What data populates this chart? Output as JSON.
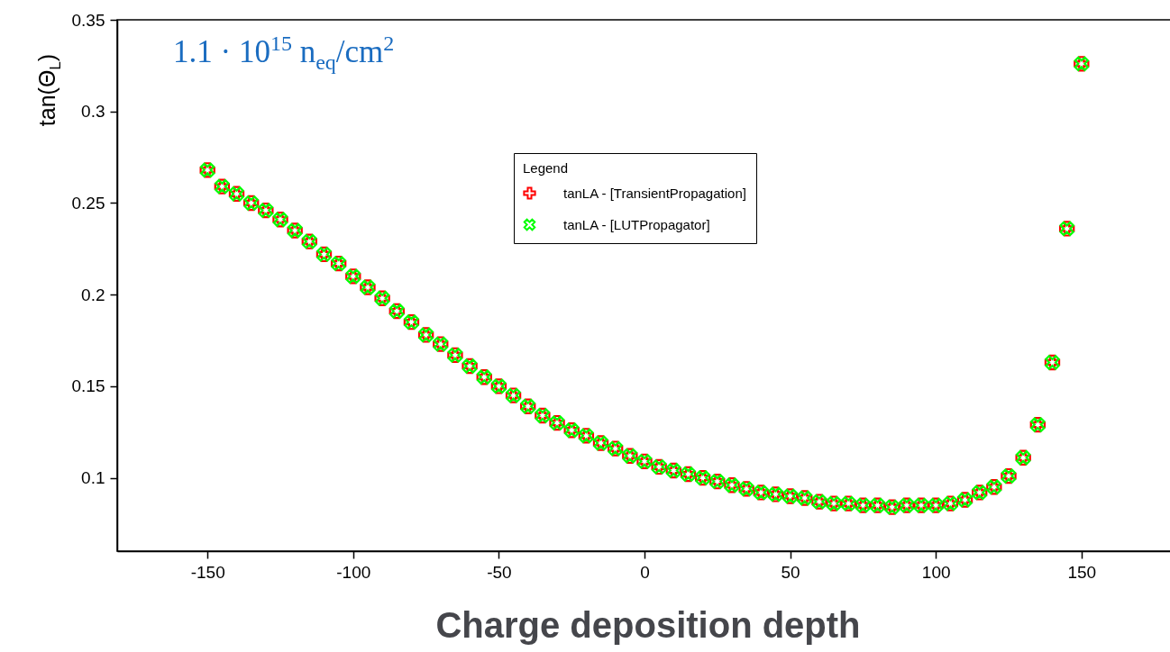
{
  "chart_data": {
    "type": "scatter",
    "xlabel": "Charge deposition depth",
    "ylabel": "tan(Θ$_{L}$)",
    "legend_title": "Legend",
    "legend": "top",
    "marker": "cross",
    "grid": false,
    "annotations": [
      "1.1 · 10$^{15}$ n$_{eq}$/cm$^{2}$"
    ],
    "xlim": [
      -181,
      181
    ],
    "xticks": [
      -150,
      -100,
      -50,
      0,
      50,
      100,
      150
    ],
    "ylim": [
      0.06,
      0.35
    ],
    "yticks": [
      0.1,
      0.15,
      0.2,
      0.25,
      0.3,
      0.35
    ],
    "x": [
      -150,
      -145,
      -140,
      -135,
      -130,
      -125,
      -120,
      -115,
      -110,
      -105,
      -100,
      -95,
      -90,
      -85,
      -80,
      -75,
      -70,
      -65,
      -60,
      -55,
      -50,
      -45,
      -40,
      -35,
      -30,
      -25,
      -20,
      -15,
      -10,
      -5,
      0,
      5,
      10,
      15,
      20,
      25,
      30,
      35,
      40,
      45,
      50,
      55,
      60,
      65,
      70,
      75,
      80,
      85,
      90,
      95,
      100,
      105,
      110,
      115,
      120,
      125,
      130,
      135,
      140,
      145,
      150
    ],
    "series": [
      {
        "name": "tanLA - [TransientPropagation]",
        "color": "#ff0000",
        "values": [
          0.268,
          0.259,
          0.255,
          0.25,
          0.246,
          0.241,
          0.235,
          0.229,
          0.222,
          0.217,
          0.21,
          0.204,
          0.198,
          0.191,
          0.185,
          0.178,
          0.173,
          0.167,
          0.161,
          0.155,
          0.15,
          0.145,
          0.139,
          0.134,
          0.13,
          0.126,
          0.123,
          0.119,
          0.116,
          0.112,
          0.109,
          0.106,
          0.104,
          0.102,
          0.1,
          0.098,
          0.096,
          0.094,
          0.092,
          0.091,
          0.09,
          0.089,
          0.087,
          0.086,
          0.086,
          0.085,
          0.085,
          0.084,
          0.085,
          0.085,
          0.085,
          0.086,
          0.088,
          0.092,
          0.095,
          0.101,
          0.111,
          0.129,
          0.163,
          0.236,
          0.326
        ]
      },
      {
        "name": "tanLA - [LUTPropagator]",
        "color": "#00ff00",
        "values": [
          0.268,
          0.259,
          0.255,
          0.25,
          0.246,
          0.241,
          0.235,
          0.229,
          0.222,
          0.217,
          0.21,
          0.204,
          0.198,
          0.191,
          0.185,
          0.178,
          0.173,
          0.167,
          0.161,
          0.155,
          0.15,
          0.145,
          0.139,
          0.134,
          0.13,
          0.126,
          0.123,
          0.119,
          0.116,
          0.112,
          0.109,
          0.106,
          0.104,
          0.102,
          0.1,
          0.098,
          0.096,
          0.094,
          0.092,
          0.091,
          0.09,
          0.089,
          0.087,
          0.086,
          0.086,
          0.085,
          0.085,
          0.084,
          0.085,
          0.085,
          0.085,
          0.086,
          0.088,
          0.092,
          0.095,
          0.101,
          0.111,
          0.129,
          0.163,
          0.236,
          0.326
        ]
      }
    ]
  }
}
